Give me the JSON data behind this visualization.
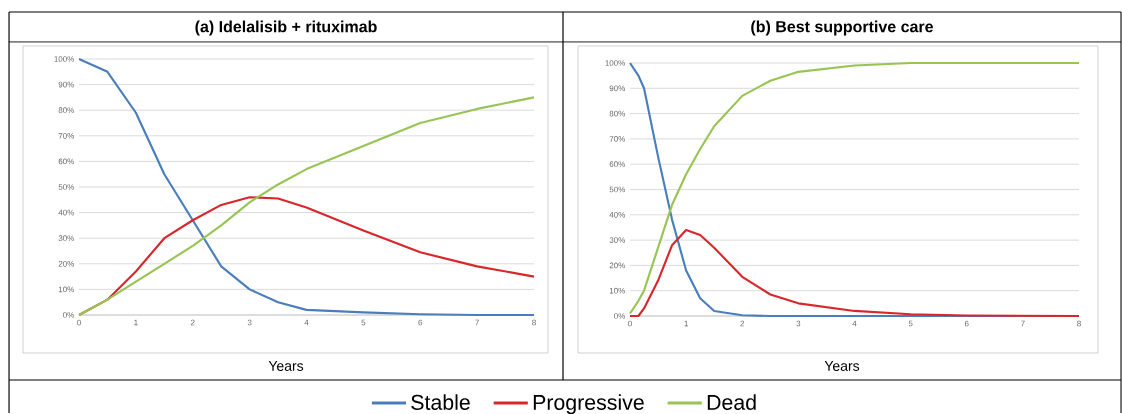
{
  "chart_data": [
    {
      "type": "line",
      "title": "(a)   Idelalisib + rituximab",
      "xlabel": "Years",
      "xlim": [
        0,
        8
      ],
      "xticks": [
        0,
        1,
        2,
        3,
        4,
        5,
        6,
        7,
        8
      ],
      "ylim": [
        0,
        100
      ],
      "yticks": [
        {
          "value": 0,
          "label": "0%"
        },
        {
          "value": 10,
          "label": "10%"
        },
        {
          "value": 20,
          "label": "20%"
        },
        {
          "value": 30,
          "label": "30%"
        },
        {
          "value": 40,
          "label": "40%"
        },
        {
          "value": 50,
          "label": "50%"
        },
        {
          "value": 60,
          "label": "60%"
        },
        {
          "value": 70,
          "label": "70%"
        },
        {
          "value": 80,
          "label": "80%"
        },
        {
          "value": 90,
          "label": "90%"
        },
        {
          "value": 100,
          "label": "100%"
        }
      ],
      "grid": "y",
      "legend": "bottom",
      "series": [
        {
          "name": "Stable",
          "color": "#4a7ebb",
          "x": [
            0,
            0.5,
            1,
            1.5,
            2,
            2.5,
            3,
            3.5,
            4,
            5,
            6,
            7,
            8
          ],
          "values": [
            100,
            95,
            79,
            55,
            37,
            19,
            10,
            5,
            2,
            1,
            0.3,
            0,
            0
          ]
        },
        {
          "name": "Progressive",
          "color": "#d9262b",
          "x": [
            0,
            0.5,
            1,
            1.5,
            2,
            2.5,
            3,
            3.5,
            4,
            5,
            6,
            7,
            8
          ],
          "values": [
            0,
            6,
            17,
            30,
            37,
            43,
            46,
            45.5,
            42,
            33,
            24.5,
            19,
            15
          ]
        },
        {
          "name": "Dead",
          "color": "#98c454",
          "x": [
            0,
            0.5,
            1,
            1.5,
            2,
            2.5,
            3,
            3.5,
            4,
            5,
            6,
            7,
            8
          ],
          "values": [
            0,
            6,
            13,
            20,
            27,
            35,
            44,
            51,
            57,
            66,
            75,
            80.5,
            85
          ]
        }
      ]
    },
    {
      "type": "line",
      "title": "(b)   Best supportive care",
      "xlabel": "Years",
      "xlim": [
        0,
        8
      ],
      "xticks": [
        0,
        1,
        2,
        3,
        4,
        5,
        6,
        7,
        8
      ],
      "ylim": [
        0,
        100
      ],
      "yticks": [
        {
          "value": 0,
          "label": "0%"
        },
        {
          "value": 10,
          "label": "10%"
        },
        {
          "value": 20,
          "label": "20%"
        },
        {
          "value": 30,
          "label": "30%"
        },
        {
          "value": 40,
          "label": "40%"
        },
        {
          "value": 50,
          "label": "50%"
        },
        {
          "value": 60,
          "label": "60%"
        },
        {
          "value": 70,
          "label": "70%"
        },
        {
          "value": 80,
          "label": "80%"
        },
        {
          "value": 90,
          "label": "90%"
        },
        {
          "value": 100,
          "label": "100%"
        }
      ],
      "grid": "y",
      "series": [
        {
          "color": "#4a7ebb",
          "x": [
            0,
            0.15,
            0.25,
            0.5,
            0.75,
            1,
            1.25,
            1.5,
            2,
            2.5,
            3,
            4,
            5,
            6,
            8
          ],
          "values": [
            100,
            95,
            90,
            63,
            38,
            18,
            7,
            2,
            0.3,
            0,
            0,
            0,
            0,
            0,
            0
          ]
        },
        {
          "color": "#d9262b",
          "x": [
            0,
            0.15,
            0.25,
            0.5,
            0.75,
            1,
            1.25,
            1.5,
            2,
            2.5,
            3,
            4,
            5,
            6,
            8
          ],
          "values": [
            0,
            0,
            3,
            14,
            28,
            34,
            32,
            27,
            15.5,
            8.5,
            5,
            2,
            0.7,
            0.2,
            0
          ]
        },
        {
          "color": "#98c454",
          "x": [
            0,
            0.15,
            0.25,
            0.5,
            0.75,
            1,
            1.25,
            1.5,
            2,
            2.5,
            3,
            4,
            5,
            6,
            8
          ],
          "values": [
            1,
            6,
            10,
            27,
            44,
            56,
            66,
            75,
            87,
            93,
            96.5,
            99,
            100,
            100,
            100
          ]
        }
      ]
    }
  ]
}
